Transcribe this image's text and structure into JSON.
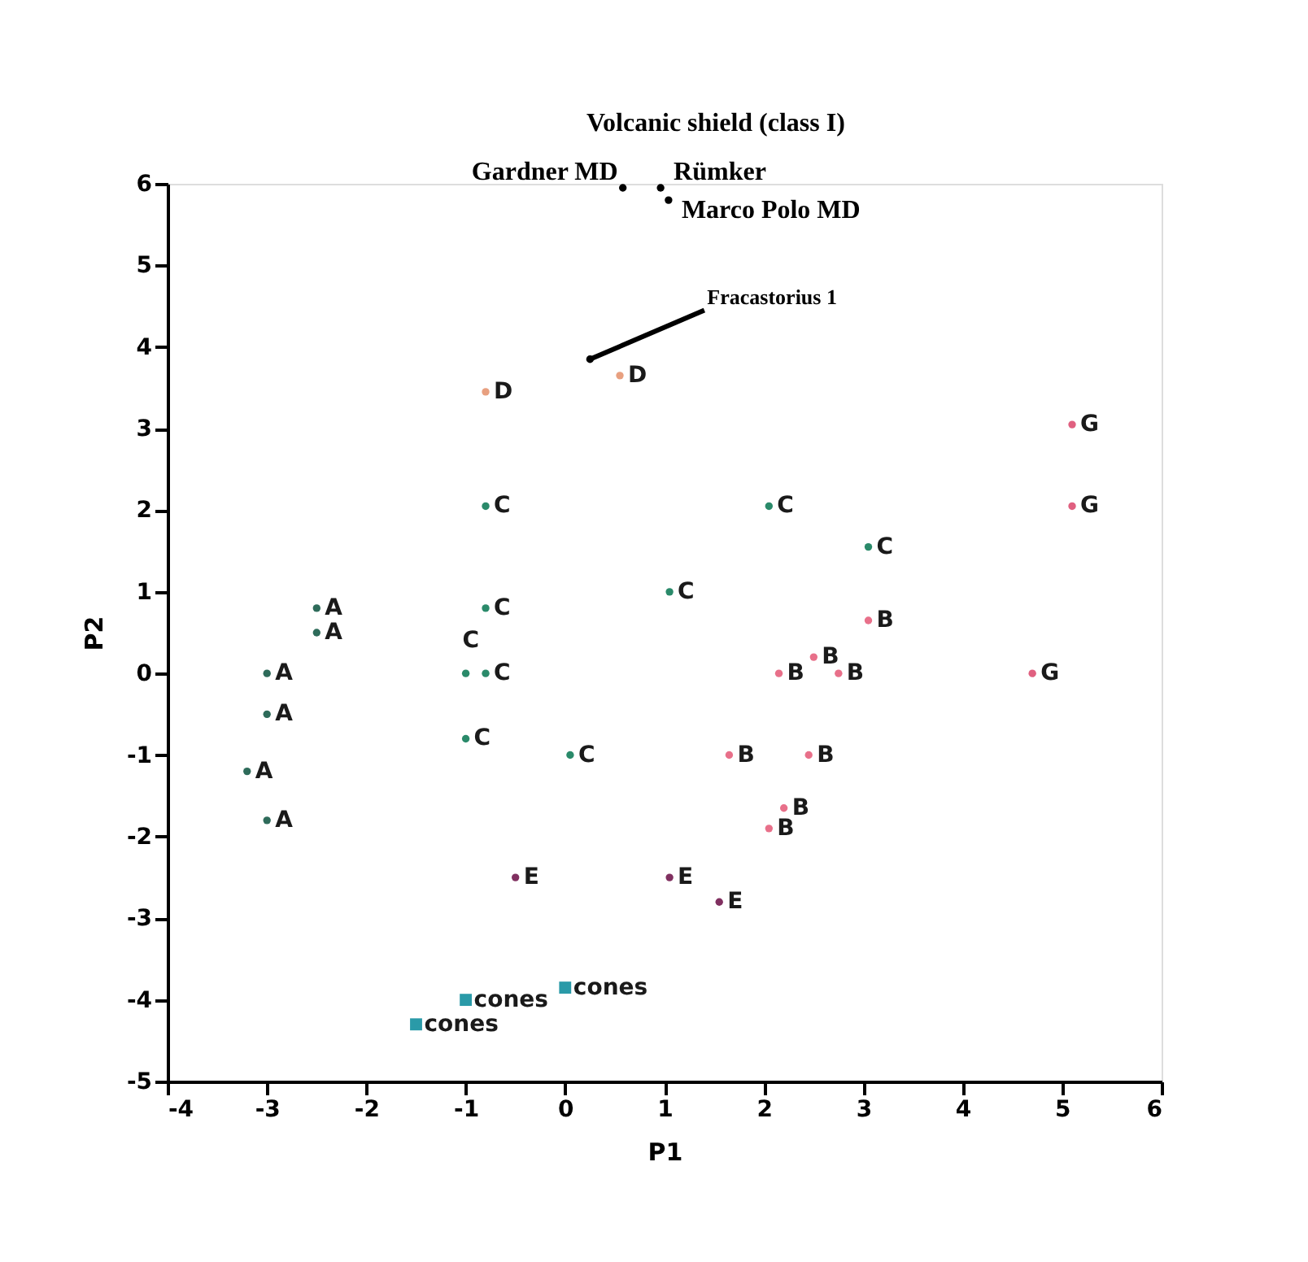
{
  "chart_data": {
    "type": "scatter",
    "xlabel": "P1",
    "ylabel": "P2",
    "xlim": [
      -4,
      6
    ],
    "ylim": [
      -5,
      6
    ],
    "xticks": [
      -4,
      -3,
      -2,
      -1,
      0,
      1,
      2,
      3,
      4,
      5,
      6
    ],
    "yticks": [
      -5,
      -4,
      -3,
      -2,
      -1,
      0,
      1,
      2,
      3,
      4,
      5,
      6
    ],
    "grid": false,
    "series": [
      {
        "name": "A",
        "color": "#2e6b5a",
        "marker": "circle",
        "x": [
          -2.5,
          -2.5,
          -3.0,
          -3.0,
          -3.2,
          -3.0
        ],
        "values": [
          0.8,
          0.5,
          0.0,
          -0.5,
          -1.2,
          -1.8
        ]
      },
      {
        "name": "B",
        "color": "#e8708a",
        "marker": "circle",
        "x": [
          3.05,
          2.5,
          2.15,
          2.75,
          1.65,
          2.45,
          2.05,
          2.2
        ],
        "values": [
          0.65,
          0.2,
          0.0,
          0.0,
          -1.0,
          -1.0,
          -1.9,
          -1.65
        ]
      },
      {
        "name": "C",
        "color": "#2a8a6a",
        "marker": "circle",
        "x": [
          -0.8,
          -1.0,
          -0.8,
          -1.0,
          0.05,
          -0.8,
          2.05,
          3.05,
          1.05
        ],
        "values": [
          0.8,
          0.0,
          0.0,
          -0.8,
          -1.0,
          2.05,
          2.05,
          1.55,
          1.0
        ]
      },
      {
        "name": "D",
        "color": "#e8a080",
        "marker": "circle",
        "x": [
          -0.8,
          0.55
        ],
        "values": [
          3.45,
          3.65
        ]
      },
      {
        "name": "E",
        "color": "#803060",
        "marker": "circle",
        "x": [
          -0.5,
          1.05,
          1.55
        ],
        "values": [
          -2.5,
          -2.5,
          -2.8
        ]
      },
      {
        "name": "G",
        "color": "#e06080",
        "marker": "circle",
        "x": [
          5.1,
          5.1,
          4.7
        ],
        "values": [
          3.05,
          2.05,
          0.0
        ]
      },
      {
        "name": "cones",
        "color": "#2a9aa8",
        "marker": "square",
        "x": [
          0.0,
          -1.0,
          -1.5
        ],
        "values": [
          -3.85,
          -4.0,
          -4.3
        ]
      },
      {
        "name": "Volcanic shield (class I)",
        "color": "#000000",
        "marker": "circle",
        "x": [
          0.58,
          0.96,
          1.04,
          0.25
        ],
        "values": [
          5.95,
          5.95,
          5.8,
          3.85
        ]
      }
    ],
    "annotations": [
      {
        "text": "Gardner MD",
        "x": 0.58,
        "y": 5.95
      },
      {
        "text": "Rümker",
        "x": 0.96,
        "y": 5.95
      },
      {
        "text": "Marco Polo MD",
        "x": 1.04,
        "y": 5.8
      },
      {
        "text": "Fracastorius 1",
        "x": 0.25,
        "y": 3.85
      }
    ]
  }
}
